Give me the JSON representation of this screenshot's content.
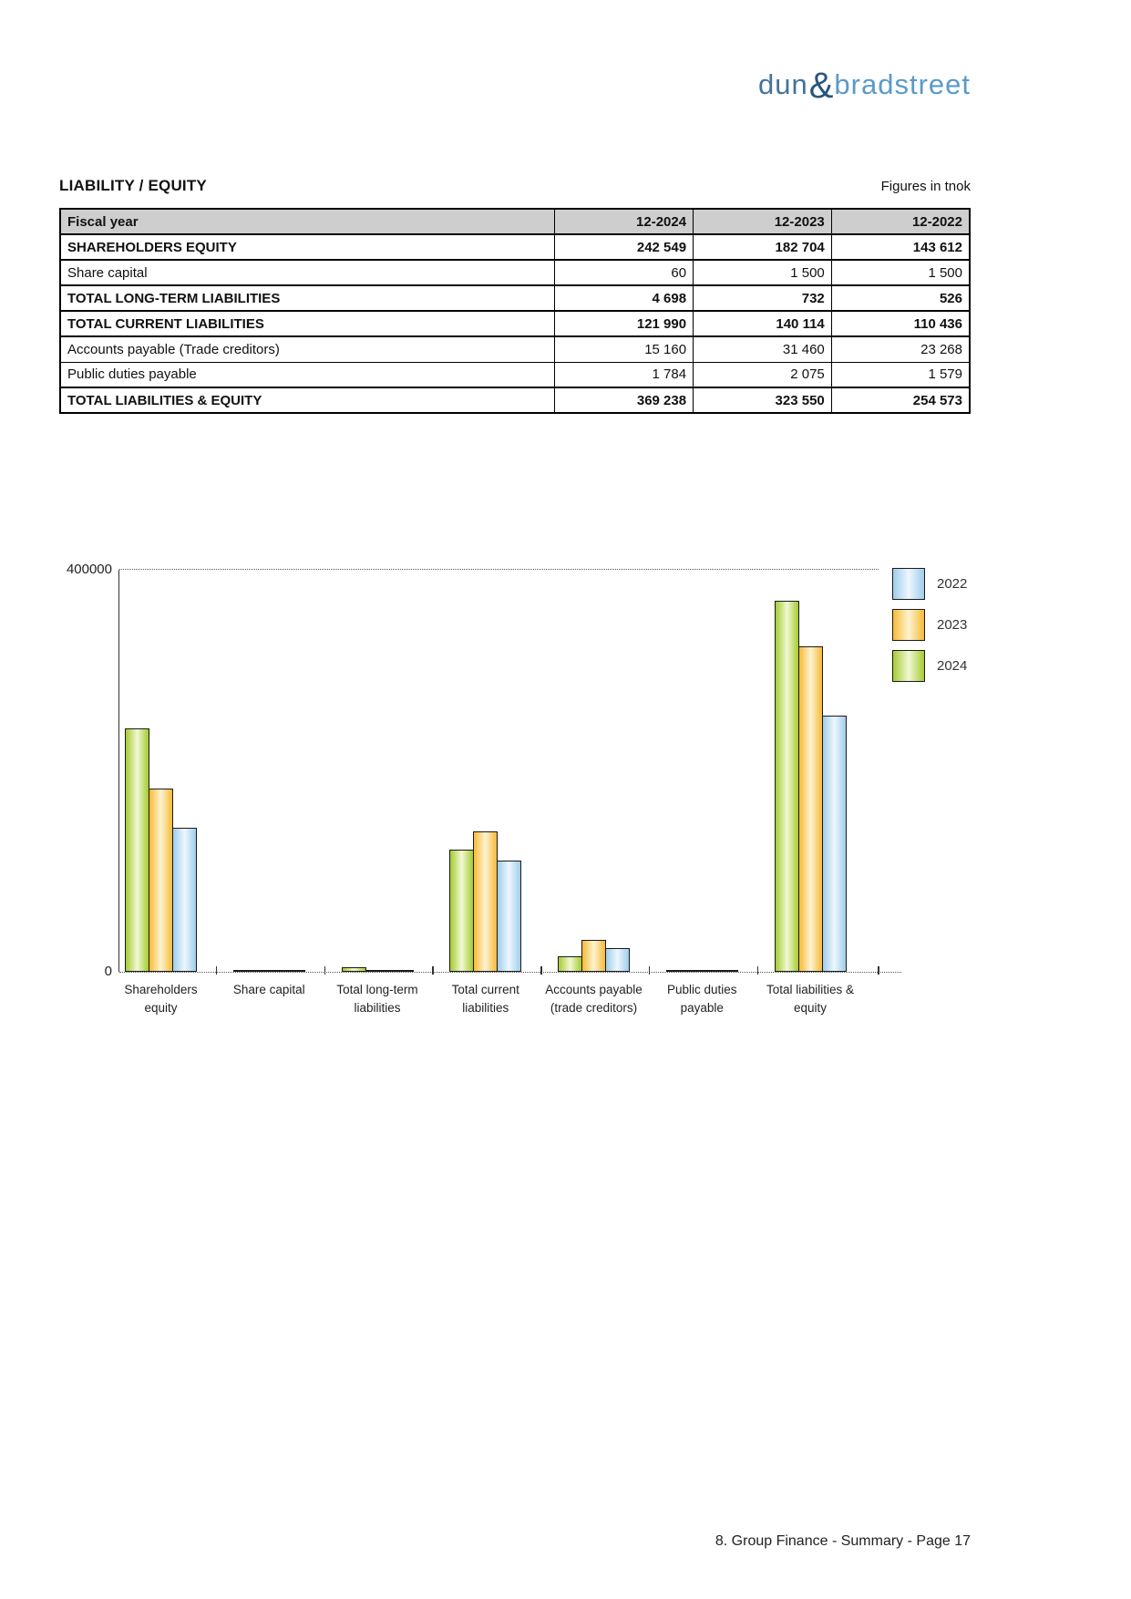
{
  "logo": {
    "word1": "dun",
    "ampersand": "&",
    "word2": "bradstreet",
    "word1_color": "#44739e",
    "amp_color": "#26567d",
    "word2_color": "#5b9ac9"
  },
  "header": {
    "title": "LIABILITY / EQUITY",
    "figures_note": "Figures in tnok"
  },
  "table": {
    "columns": [
      "Fiscal year",
      "12-2024",
      "12-2023",
      "12-2022"
    ],
    "rows": [
      {
        "label": "SHAREHOLDERS EQUITY",
        "bold": true,
        "values": [
          "242 549",
          "182 704",
          "143 612"
        ]
      },
      {
        "label": "Share capital",
        "bold": false,
        "values": [
          "60",
          "1 500",
          "1 500"
        ]
      },
      {
        "label": "TOTAL LONG-TERM LIABILITIES",
        "bold": true,
        "values": [
          "4 698",
          "732",
          "526"
        ]
      },
      {
        "label": "TOTAL CURRENT LIABILITIES",
        "bold": true,
        "values": [
          "121 990",
          "140 114",
          "110 436"
        ]
      },
      {
        "label": "Accounts payable (Trade creditors)",
        "bold": false,
        "values": [
          "15 160",
          "31 460",
          "23 268"
        ]
      },
      {
        "label": "Public duties payable",
        "bold": false,
        "values": [
          "1 784",
          "2 075",
          "1 579"
        ]
      },
      {
        "label": "TOTAL LIABILITIES & EQUITY",
        "bold": true,
        "values": [
          "369 238",
          "323 550",
          "254 573"
        ]
      }
    ]
  },
  "chart_data": {
    "type": "bar",
    "title": "",
    "unit": "tnok",
    "categories": [
      "Shareholders equity",
      "Share capital",
      "Total long-term liabilities",
      "Total current liabilities",
      "Accounts payable (trade creditors)",
      "Public duties payable",
      "Total liabilities & equity"
    ],
    "category_label_lines": [
      [
        "Shareholders",
        "equity"
      ],
      [
        "Share capital"
      ],
      [
        "Total long-term",
        "liabilities"
      ],
      [
        "Total current",
        "liabilities"
      ],
      [
        "Accounts payable",
        "(trade creditors)"
      ],
      [
        "Public duties",
        "payable"
      ],
      [
        "Total liabilities &",
        "equity"
      ]
    ],
    "series": [
      {
        "name": "2024",
        "color": "#a5cb30",
        "color_light": "#f1f8d5",
        "values": [
          242549,
          60,
          4698,
          121990,
          15160,
          1784,
          369238
        ]
      },
      {
        "name": "2023",
        "color": "#f7ba38",
        "color_light": "#fdf3d0",
        "values": [
          182704,
          1500,
          732,
          140114,
          31460,
          2075,
          323550
        ]
      },
      {
        "name": "2022",
        "color": "#9fcdec",
        "color_light": "#edf7fd",
        "values": [
          143612,
          1500,
          526,
          110436,
          23268,
          1579,
          254573
        ]
      }
    ],
    "legend": [
      "2022",
      "2023",
      "2024"
    ],
    "legend_position": "top-right",
    "ylim": [
      0,
      400000
    ],
    "ytick_labels": [
      "0",
      "400000"
    ],
    "grid": false
  },
  "footer": {
    "text": "8. Group Finance - Summary - Page 17"
  }
}
